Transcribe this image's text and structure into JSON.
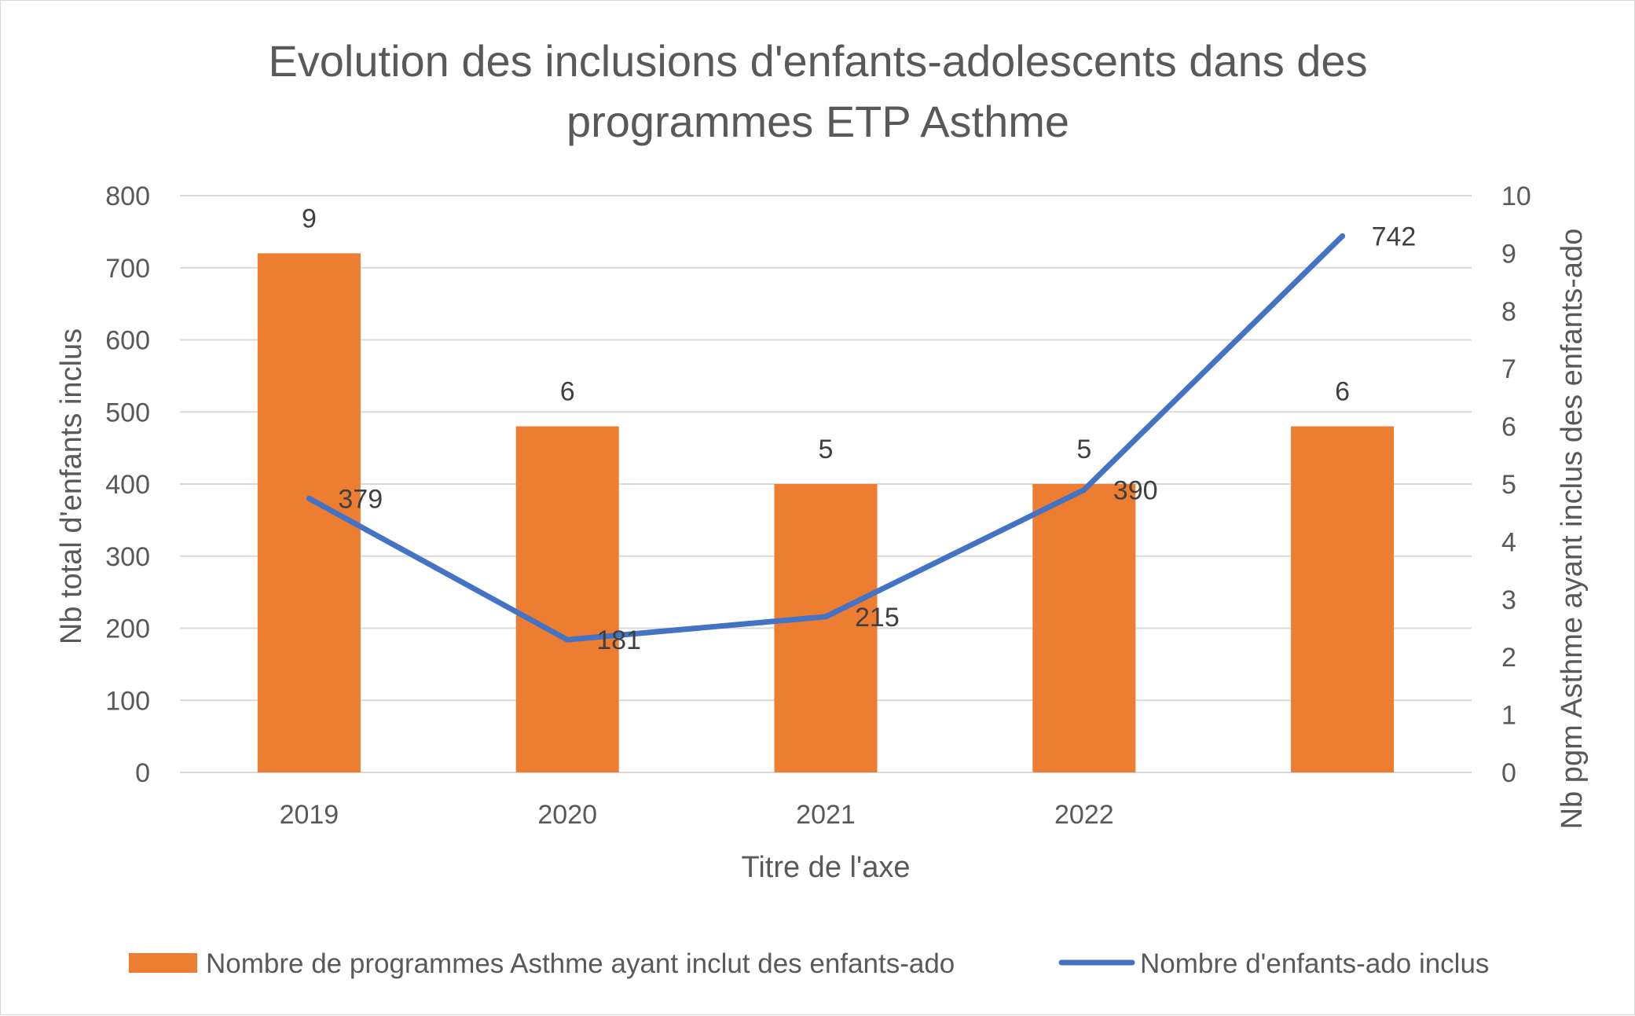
{
  "chart_data": {
    "type": "bar",
    "title_lines": [
      "Evolution des inclusions d'enfants-adolescents dans des",
      "programmes ETP Asthme"
    ],
    "categories": [
      "2019",
      "2020",
      "2021",
      "2022",
      ""
    ],
    "xlabel": "Titre de l'axe",
    "ylabel_left": "Nb total d'enfants inclus",
    "ylabel_right": "Nb pgm Asthme ayant inclus des enfants-ado",
    "ylim_left": [
      0,
      800
    ],
    "ylim_right": [
      0,
      10
    ],
    "yticks_left": [
      "0",
      "100",
      "200",
      "300",
      "400",
      "500",
      "600",
      "700",
      "800"
    ],
    "yticks_right": [
      "0",
      "1",
      "2",
      "3",
      "4",
      "5",
      "6",
      "7",
      "8",
      "9",
      "10"
    ],
    "grid": true,
    "legend_position": "bottom",
    "series": [
      {
        "name": "Nombre de programmes Asthme ayant inclut des enfants-ado",
        "type": "bar",
        "axis": "left",
        "color": "#ED7D31",
        "values": [
          720,
          480,
          400,
          400,
          480
        ],
        "labels": [
          "9",
          "6",
          "5",
          "5",
          "6"
        ]
      },
      {
        "name": "Nombre d'enfants-ado inclus",
        "type": "line",
        "axis": "right",
        "color": "#4472C4",
        "values": [
          4.75,
          2.3,
          2.7,
          4.9,
          9.3
        ],
        "labels": [
          "379",
          "181",
          "215",
          "390",
          "742"
        ]
      }
    ]
  }
}
